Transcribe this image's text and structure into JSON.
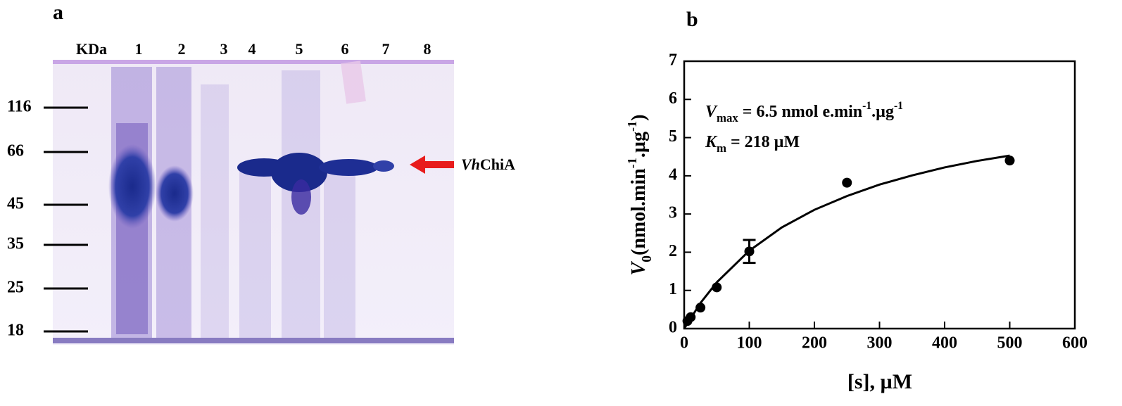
{
  "gel": {
    "panel_label": "a",
    "unit_label": "KDa",
    "lanes": [
      "1",
      "2",
      "3",
      "4",
      "5",
      "6",
      "7",
      "8"
    ],
    "markers": [
      "116",
      "66",
      "45",
      "35",
      "25",
      "18"
    ],
    "band_label": [
      {
        "text": "Vh",
        "style": "italic"
      },
      {
        "text": "ChiA",
        "style": "normal"
      }
    ]
  },
  "chart_data": {
    "type": "scatter",
    "panel_label": "b",
    "x_label": "[s], µM",
    "y_label": [
      {
        "text": "V",
        "style": "italic"
      },
      {
        "text": "0",
        "style": "sub"
      },
      {
        "text": "(nmol.min",
        "style": "normal"
      },
      {
        "text": "-1",
        "style": "sup"
      },
      {
        "text": ".µg",
        "style": "normal"
      },
      {
        "text": "-1",
        "style": "sup"
      },
      {
        "text": ")",
        "style": "normal"
      }
    ],
    "annotations": [
      [
        {
          "text": "V",
          "style": "italic"
        },
        {
          "text": "max",
          "style": "sub"
        },
        {
          "text": " = 6.5 nmol e.min",
          "style": "normal"
        },
        {
          "text": "-1",
          "style": "sup"
        },
        {
          "text": ".µg",
          "style": "normal"
        },
        {
          "text": "-1",
          "style": "sup"
        }
      ],
      [
        {
          "text": "K",
          "style": "italic"
        },
        {
          "text": "m",
          "style": "sub"
        },
        {
          "text": "    = 218 µM",
          "style": "normal"
        }
      ]
    ],
    "points": {
      "x": [
        5,
        10,
        25,
        50,
        100,
        250,
        500
      ],
      "y": [
        0.2,
        0.3,
        0.55,
        1.08,
        2.02,
        3.82,
        4.4
      ],
      "error": [
        null,
        null,
        null,
        null,
        0.3,
        null,
        null
      ],
      "color": "#000000"
    },
    "fit": {
      "x": [
        0,
        25,
        50,
        100,
        150,
        200,
        250,
        300,
        350,
        400,
        450,
        500
      ],
      "y": [
        0,
        0.67,
        1.21,
        2.04,
        2.65,
        3.11,
        3.47,
        3.77,
        4.01,
        4.22,
        4.39,
        4.53
      ],
      "color": "#000000"
    },
    "xlim": [
      0,
      600
    ],
    "ylim": [
      0,
      7
    ],
    "xticks": [
      0,
      100,
      200,
      300,
      400,
      500,
      600
    ],
    "yticks": [
      0,
      1,
      2,
      3,
      4,
      5,
      6,
      7
    ]
  }
}
